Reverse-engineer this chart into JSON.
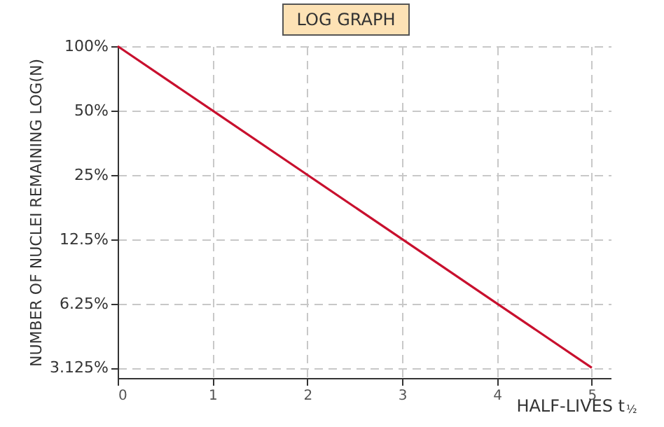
{
  "chart_data": {
    "type": "line",
    "title": "LOG GRAPH",
    "xlabel": "HALF-LIVES t$_{½}$",
    "ylabel": "NUMBER OF NUCLEI REMAINING LOG(N)",
    "x": [
      0,
      1,
      2,
      3,
      4,
      5
    ],
    "series": [
      {
        "color": "#c8102e",
        "values": [
          100,
          50,
          25,
          12.5,
          6.25,
          3.125
        ]
      }
    ],
    "log": "y",
    "xlim": [
      0,
      5.2
    ],
    "ylim": [
      2.8,
      100
    ],
    "xticks": [
      0,
      1,
      2,
      3,
      4,
      5
    ],
    "yticks": [
      {
        "value": 100,
        "label": "100%"
      },
      {
        "value": 50,
        "label": "50%"
      },
      {
        "value": 25,
        "label": "25%"
      },
      {
        "value": 12.5,
        "label": "12.5%"
      },
      {
        "value": 6.25,
        "label": "6.25%"
      },
      {
        "value": 3.125,
        "label": "3.125%"
      }
    ],
    "grid": true,
    "marker": "none",
    "line_style": "solid"
  }
}
